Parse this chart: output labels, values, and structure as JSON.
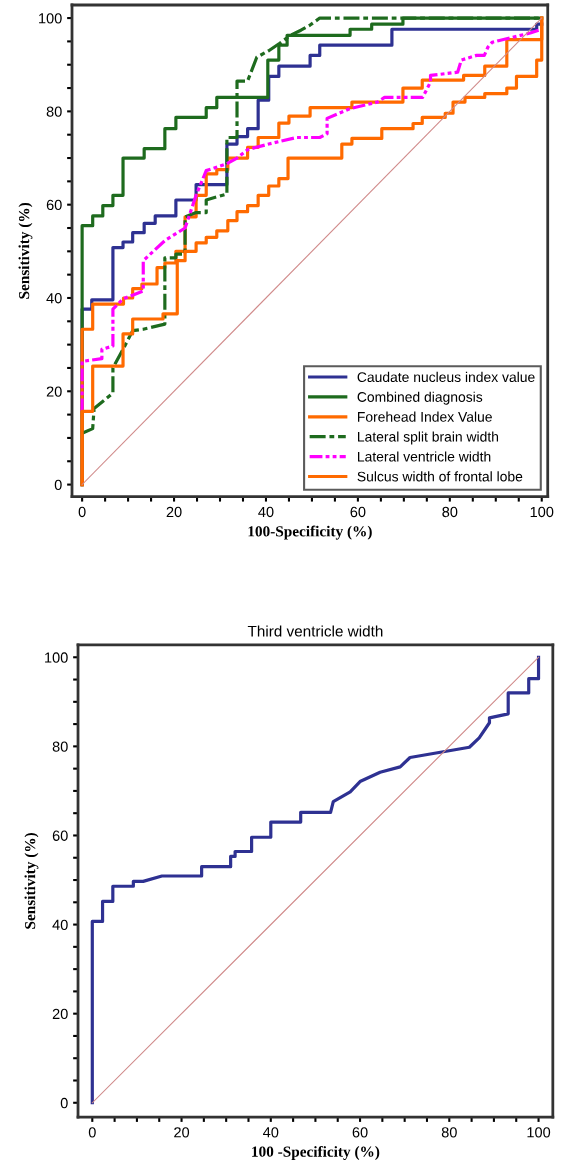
{
  "chart_data": [
    {
      "type": "line",
      "xlabel": "100-Specificity (%)",
      "ylabel": "Sensitivity (%)",
      "xlim": [
        -2.2,
        101.3
      ],
      "ylim": [
        -2.6,
        102.8
      ],
      "xticks": [
        0,
        {
          "value": 5,
          "label": null
        },
        {
          "value": 10,
          "label": null
        },
        {
          "value": 15,
          "label": null
        },
        20,
        {
          "value": 25,
          "label": null
        },
        {
          "value": 30,
          "label": null
        },
        {
          "value": 35,
          "label": null
        },
        40,
        {
          "value": 45,
          "label": null
        },
        {
          "value": 50,
          "label": null
        },
        {
          "value": 55,
          "label": null
        },
        60,
        {
          "value": 65,
          "label": null
        },
        {
          "value": 70,
          "label": null
        },
        {
          "value": 75,
          "label": null
        },
        80,
        {
          "value": 85,
          "label": null
        },
        {
          "value": 90,
          "label": null
        },
        {
          "value": 95,
          "label": null
        },
        100
      ],
      "yticks": [
        0,
        {
          "value": 5,
          "label": null
        },
        {
          "value": 10,
          "label": null
        },
        {
          "value": 15,
          "label": null
        },
        20,
        {
          "value": 25,
          "label": null
        },
        {
          "value": 30,
          "label": null
        },
        {
          "value": 35,
          "label": null
        },
        40,
        {
          "value": 45,
          "label": null
        },
        {
          "value": 50,
          "label": null
        },
        {
          "value": 55,
          "label": null
        },
        60,
        {
          "value": 65,
          "label": null
        },
        {
          "value": 70,
          "label": null
        },
        {
          "value": 75,
          "label": null
        },
        80,
        {
          "value": 85,
          "label": null
        },
        {
          "value": 90,
          "label": null
        },
        {
          "value": 95,
          "label": null
        },
        100
      ],
      "grid": false,
      "legend": "bottom right",
      "marker": "none",
      "series": [
        {
          "name": "Caudate nucleus index value",
          "color": "#2e3192",
          "line_style": "solid",
          "x": [
            0,
            0,
            2.1,
            2.1,
            6.7,
            6.7,
            8.9,
            8.9,
            11,
            11,
            13.5,
            13.5,
            15.9,
            15.9,
            20.4,
            20.4,
            24.8,
            24.8,
            31.5,
            31.5,
            33.7,
            33.7,
            36,
            36,
            38.3,
            38.3,
            40.6,
            40.6,
            42.8,
            42.8,
            49.6,
            49.6,
            51.7,
            51.7,
            67.4,
            67.4,
            98.9,
            98.9,
            100
          ],
          "values": [
            0,
            37.6,
            37.6,
            39.6,
            39.6,
            50.8,
            50.8,
            52,
            52,
            54,
            54,
            56,
            56,
            57.6,
            57.6,
            61,
            61,
            64.3,
            64.3,
            73,
            73,
            74.6,
            74.6,
            76.3,
            76.3,
            82.4,
            82.4,
            87.5,
            87.5,
            89.7,
            89.7,
            92,
            92,
            94.2,
            94.2,
            97.6,
            97.6,
            98.7,
            98.7
          ]
        },
        {
          "name": "Combined diagnosis",
          "color": "#1e6b1e",
          "line_style": "solid",
          "x": [
            0,
            0,
            2.3,
            2.3,
            4.5,
            4.5,
            6.7,
            6.7,
            8.9,
            8.9,
            13.5,
            13.5,
            18,
            18,
            20.4,
            20.4,
            27,
            27,
            29.3,
            29.3,
            40.4,
            40.4,
            42.8,
            42.8,
            44.6,
            44.6,
            58.3,
            58.3,
            63,
            63,
            69.8,
            69.8,
            100
          ],
          "values": [
            0,
            55.5,
            55.5,
            57.6,
            57.6,
            59.8,
            59.8,
            62,
            62,
            70,
            70,
            72,
            72,
            76.3,
            76.3,
            78.7,
            78.7,
            80.8,
            80.8,
            83,
            83,
            91,
            91,
            94.2,
            94.2,
            96.3,
            96.3,
            97.6,
            97.6,
            98.7,
            98.7,
            100,
            100
          ]
        },
        {
          "name": "Forehead Index Value",
          "color": "#ff6a00",
          "line_style": "solid",
          "x": [
            0,
            0,
            2.3,
            2.3,
            9,
            9,
            11,
            11,
            13,
            13,
            16.3,
            16.3,
            18,
            18,
            20.4,
            20.4,
            22.4,
            22.4,
            24.8,
            24.8,
            27,
            27,
            29.3,
            29.3,
            31.7,
            31.7,
            36,
            36,
            38.3,
            38.3,
            42.8,
            42.8,
            45,
            45,
            49.6,
            49.6,
            58.7,
            58.7,
            61,
            61,
            69.8,
            69.8,
            74,
            74,
            83,
            83,
            87.6,
            87.6,
            92.4,
            92.4,
            100,
            100
          ],
          "values": [
            0,
            33.3,
            33.3,
            38.7,
            38.7,
            40,
            40,
            42,
            42,
            43,
            43,
            46.5,
            46.5,
            47.5,
            47.5,
            50,
            50,
            57.4,
            57.4,
            62,
            62,
            66.6,
            66.6,
            67.5,
            67.5,
            70,
            70,
            72.3,
            72.3,
            74.4,
            74.4,
            77.5,
            77.5,
            79,
            79,
            80.8,
            80.8,
            82,
            82,
            82,
            82,
            85,
            85,
            86.7,
            86.7,
            87.7,
            87.7,
            89.7,
            89.7,
            95.4,
            95.4,
            100
          ]
        },
        {
          "name": "Lateral split brain width",
          "color": "#1e6b1e",
          "line_style": "dashed",
          "x": [
            0,
            2.3,
            2.6,
            6.7,
            6.7,
            8.9,
            11,
            13.3,
            18,
            18,
            20.4,
            20.4,
            22.4,
            22.4,
            24.8,
            27,
            27,
            31.5,
            31.5,
            33.7,
            33.7,
            36,
            38,
            40.6,
            43,
            45.3,
            47.6,
            49.6,
            51.7,
            100
          ],
          "values": [
            11,
            12,
            16.3,
            19.6,
            25,
            29,
            33,
            33.3,
            34.4,
            48.6,
            48.6,
            49.4,
            49.4,
            57.4,
            58.3,
            58.3,
            61,
            62.3,
            74.4,
            74.4,
            86.5,
            86.5,
            91.6,
            93,
            94.6,
            96.3,
            97.4,
            98.5,
            100,
            100
          ]
        },
        {
          "name": "Lateral ventricle width",
          "color": "#ff00ff",
          "line_style": "dotted",
          "x": [
            0,
            0,
            4.3,
            4.3,
            6.7,
            6.7,
            8.9,
            13.3,
            13.3,
            18,
            22.4,
            24.8,
            27,
            31.5,
            33.7,
            36,
            40.6,
            46.7,
            51.7,
            53.3,
            53.3,
            58.3,
            64.3,
            65.8,
            74.1,
            75.8,
            75.8,
            81.7,
            82.5,
            85.8,
            87.5,
            88.3,
            89.2,
            90.8,
            97.5,
            100
          ],
          "values": [
            15.7,
            26.4,
            27,
            29,
            29.7,
            37.6,
            39.8,
            41.5,
            48,
            52.3,
            55,
            62,
            67.3,
            68.8,
            70,
            71.8,
            73,
            74.4,
            74.4,
            75.2,
            78.5,
            80.6,
            82,
            83,
            83,
            86.3,
            87.7,
            88.4,
            91,
            92,
            92,
            93.8,
            94.8,
            95.2,
            96.8,
            97.6
          ]
        },
        {
          "name": "Sulcus width of frontal lobe",
          "color": "#ff6a00",
          "line_style": "solid",
          "x": [
            0,
            0,
            2.3,
            2.3,
            8.9,
            8.9,
            11,
            11,
            17.6,
            17.6,
            20.7,
            20.7,
            22.4,
            22.4,
            24.8,
            24.8,
            27,
            27,
            29.3,
            29.3,
            31.7,
            31.7,
            33.7,
            33.7,
            36,
            36,
            38.3,
            38.3,
            40.6,
            40.6,
            42.8,
            42.8,
            44.8,
            44.8,
            56.5,
            56.5,
            58.7,
            58.7,
            65.2,
            65.2,
            72,
            72,
            74,
            74,
            79,
            79,
            80.7,
            80.7,
            83.3,
            83.3,
            87.6,
            87.6,
            92.4,
            92.4,
            94.5,
            94.5,
            98.9,
            98.9,
            100,
            100
          ],
          "values": [
            0,
            15.7,
            15.7,
            25.4,
            25.4,
            32.3,
            32.3,
            35.5,
            35.5,
            36.6,
            36.6,
            48,
            48,
            50,
            50,
            51.8,
            51.8,
            53,
            53,
            54.4,
            54.4,
            56.6,
            56.6,
            58.5,
            58.5,
            59.8,
            59.8,
            62,
            62,
            64,
            64,
            65.6,
            65.6,
            70,
            70,
            73,
            73,
            74.2,
            74.2,
            76.3,
            76.3,
            77.4,
            77.4,
            78.7,
            78.7,
            79.6,
            79.6,
            82,
            82,
            83,
            83,
            83.8,
            83.8,
            85,
            85,
            87.5,
            87.5,
            91,
            91,
            100
          ]
        },
        {
          "color": "#d08a8a",
          "line_style": "solid",
          "x": [
            0,
            100
          ],
          "values": [
            0,
            100
          ]
        }
      ]
    },
    {
      "type": "line",
      "title": "Third ventricle width",
      "xlabel": "100 -Specificity (%)",
      "ylabel": "Sensitivity (%)",
      "xlim": [
        -3.2,
        103.2
      ],
      "ylim": [
        -3.2,
        102.8
      ],
      "xticks": [
        0,
        {
          "value": 5,
          "label": null
        },
        {
          "value": 10,
          "label": null
        },
        {
          "value": 15,
          "label": null
        },
        20,
        {
          "value": 25,
          "label": null
        },
        {
          "value": 30,
          "label": null
        },
        {
          "value": 35,
          "label": null
        },
        40,
        {
          "value": 45,
          "label": null
        },
        {
          "value": 50,
          "label": null
        },
        {
          "value": 55,
          "label": null
        },
        60,
        {
          "value": 65,
          "label": null
        },
        {
          "value": 70,
          "label": null
        },
        {
          "value": 75,
          "label": null
        },
        80,
        {
          "value": 85,
          "label": null
        },
        {
          "value": 90,
          "label": null
        },
        {
          "value": 95,
          "label": null
        },
        100
      ],
      "yticks": [
        0,
        {
          "value": 5,
          "label": null
        },
        {
          "value": 10,
          "label": null
        },
        {
          "value": 15,
          "label": null
        },
        20,
        {
          "value": 25,
          "label": null
        },
        {
          "value": 30,
          "label": null
        },
        {
          "value": 35,
          "label": null
        },
        40,
        {
          "value": 45,
          "label": null
        },
        {
          "value": 50,
          "label": null
        },
        {
          "value": 55,
          "label": null
        },
        60,
        {
          "value": 65,
          "label": null
        },
        {
          "value": 70,
          "label": null
        },
        {
          "value": 75,
          "label": null
        },
        80,
        {
          "value": 85,
          "label": null
        },
        {
          "value": 90,
          "label": null
        },
        {
          "value": 95,
          "label": null
        },
        100
      ],
      "grid": false,
      "legend": false,
      "marker": "none",
      "series": [
        {
          "color": "#2e3192",
          "line_style": "solid",
          "x": [
            0,
            0,
            2.3,
            2.3,
            4.6,
            4.6,
            9.2,
            9.2,
            11.4,
            15.6,
            24.5,
            24.5,
            31,
            31,
            32,
            32,
            35.7,
            35.7,
            40,
            40,
            46.7,
            46.7,
            53.4,
            54,
            57.8,
            57.8,
            60,
            60,
            64.5,
            64.5,
            69,
            69,
            71.2,
            71.2,
            84.5,
            84.5,
            86.7,
            86.7,
            89,
            89,
            93.2,
            93.2,
            97.8,
            97.8,
            100,
            100
          ],
          "values": [
            0,
            40.7,
            40.7,
            45.2,
            45.2,
            48.6,
            48.6,
            49.7,
            49.7,
            50.9,
            50.9,
            53,
            53,
            55.3,
            55.3,
            56.4,
            56.4,
            59.6,
            59.6,
            63,
            63,
            65.2,
            65.2,
            67.6,
            69.8,
            69.8,
            72.1,
            72.1,
            74.2,
            74.2,
            75.4,
            75.4,
            77.5,
            77.5,
            79.8,
            79.8,
            81.9,
            81.9,
            85.3,
            86.4,
            87.3,
            92,
            92,
            95.2,
            95.2,
            100
          ]
        },
        {
          "color": "#d08a8a",
          "line_style": "solid",
          "x": [
            0,
            100
          ],
          "values": [
            0,
            100
          ]
        }
      ]
    }
  ]
}
